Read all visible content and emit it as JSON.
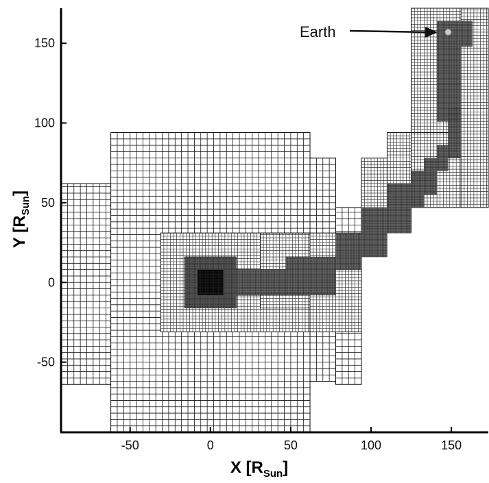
{
  "chart_data": {
    "type": "diagram",
    "description_hidden": false,
    "xlim": [
      -93,
      173
    ],
    "ylim": [
      -94,
      172
    ],
    "x_ticks": [
      -50,
      0,
      50,
      100,
      150
    ],
    "y_ticks": [
      -50,
      0,
      50,
      100,
      150
    ],
    "x_tick_labels": [
      "-50",
      "0",
      "50",
      "100",
      "150"
    ],
    "y_tick_labels": [
      "-50",
      "0",
      "50",
      "100",
      "150"
    ],
    "xlabel_main": "X [R",
    "xlabel_sub": "Sun",
    "xlabel_end": "]",
    "ylabel_main": "Y [R",
    "ylabel_sub": "Sun",
    "ylabel_end": "]",
    "annotation": {
      "text": "Earth",
      "target": [
        148,
        157
      ]
    },
    "earth": [
      148,
      157
    ],
    "colors": {
      "grid": "#111111",
      "bg": "#ffffff",
      "earth": "#cccccc"
    },
    "blocks": [
      {
        "x1": -93,
        "x2": -62,
        "y1": -64,
        "y2": 62,
        "step": 4
      },
      {
        "x1": -62,
        "x2": 62,
        "y1": -94,
        "y2": 94,
        "step": 4
      },
      {
        "x1": 62,
        "x2": 78,
        "y1": -62,
        "y2": 78,
        "step": 4
      },
      {
        "x1": 78,
        "x2": 94,
        "y1": -64,
        "y2": 47,
        "step": 4
      },
      {
        "x1": 94,
        "x2": 110,
        "y1": 32,
        "y2": 78,
        "step": 2
      },
      {
        "x1": 110,
        "x2": 125,
        "y1": 32,
        "y2": 94,
        "step": 2
      },
      {
        "x1": 125,
        "x2": 156,
        "y1": 47,
        "y2": 172,
        "step": 2
      },
      {
        "x1": 125,
        "x2": 163,
        "y1": 94,
        "y2": 172,
        "step": 2
      },
      {
        "x1": 156,
        "x2": 173,
        "y1": 47,
        "y2": 172,
        "step": 2
      },
      {
        "x1": -31,
        "x2": 62,
        "y1": -31,
        "y2": 31,
        "step": 2
      },
      {
        "x1": 31,
        "x2": 62,
        "y1": -16,
        "y2": 31,
        "step": 2
      },
      {
        "x1": 62,
        "x2": 94,
        "y1": -31,
        "y2": 31,
        "step": 2
      },
      {
        "x1": -16,
        "x2": 16,
        "y1": -16,
        "y2": 16,
        "step": 1
      },
      {
        "x1": 16,
        "x2": 47,
        "y1": -8,
        "y2": 8,
        "step": 1
      },
      {
        "x1": 47,
        "x2": 62,
        "y1": -8,
        "y2": 16,
        "step": 1
      }
    ],
    "dark_regions": [
      {
        "x1": -16,
        "x2": 16,
        "y1": -16,
        "y2": 16,
        "fill": "#5a5a5a"
      },
      {
        "x1": 16,
        "x2": 47,
        "y1": -8,
        "y2": 8,
        "fill": "#6a6a6a"
      },
      {
        "x1": 47,
        "x2": 78,
        "y1": -8,
        "y2": 16,
        "fill": "#6a6a6a"
      },
      {
        "x1": 78,
        "x2": 94,
        "y1": 8,
        "y2": 31,
        "fill": "#6a6a6a"
      },
      {
        "x1": 94,
        "x2": 110,
        "y1": 16,
        "y2": 47,
        "fill": "#6a6a6a"
      },
      {
        "x1": 110,
        "x2": 125,
        "y1": 31,
        "y2": 62,
        "fill": "#6a6a6a"
      },
      {
        "x1": 125,
        "x2": 133,
        "y1": 47,
        "y2": 70,
        "fill": "#6a6a6a"
      },
      {
        "x1": 133,
        "x2": 141,
        "y1": 55,
        "y2": 78,
        "fill": "#6a6a6a"
      },
      {
        "x1": 141,
        "x2": 148,
        "y1": 70,
        "y2": 86,
        "fill": "#6a6a6a"
      },
      {
        "x1": 148,
        "x2": 156,
        "y1": 78,
        "y2": 109,
        "fill": "#6a6a6a"
      },
      {
        "x1": 141,
        "x2": 156,
        "y1": 101,
        "y2": 125,
        "fill": "#6a6a6a"
      },
      {
        "x1": 141,
        "x2": 156,
        "y1": 125,
        "y2": 148,
        "fill": "#6a6a6a"
      },
      {
        "x1": 141,
        "x2": 163,
        "y1": 148,
        "y2": 164,
        "fill": "#6a6a6a"
      }
    ],
    "core": {
      "x1": -8,
      "x2": 8,
      "y1": -8,
      "y2": 8,
      "fill": "#000000"
    }
  }
}
